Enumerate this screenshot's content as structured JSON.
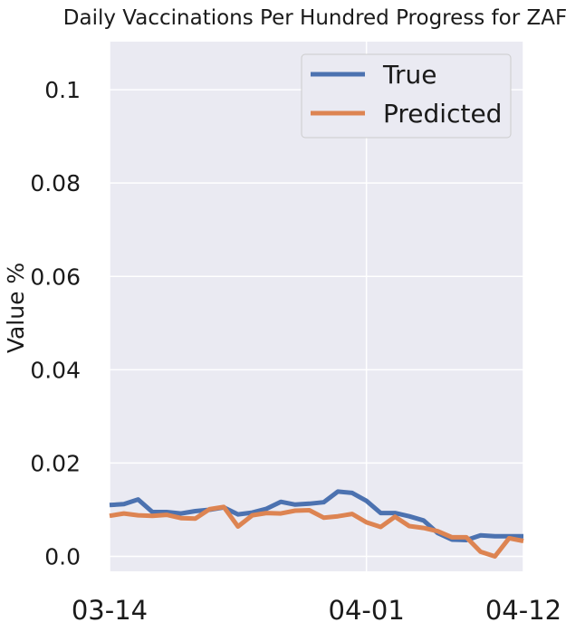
{
  "chart_data": {
    "type": "line",
    "title": "Daily Vaccinations Per Hundred Progress for ZAF",
    "xlabel": "",
    "ylabel": "Value %",
    "x_tick_labels": [
      "03-14",
      "04-01",
      "04-12"
    ],
    "x_tick_positions": [
      0,
      18,
      29
    ],
    "y_tick_labels": [
      "0.0",
      "0.02",
      "0.04",
      "0.06",
      "0.08",
      "0.1"
    ],
    "y_tick_values": [
      0.0,
      0.02,
      0.04,
      0.06,
      0.08,
      0.1
    ],
    "ylim": [
      -0.0032,
      0.1103
    ],
    "xlim": [
      0,
      29
    ],
    "grid": true,
    "legend_position": "top-right",
    "series": [
      {
        "name": "True",
        "color": "#4c72b0",
        "values": [
          0.011,
          0.0112,
          0.0122,
          0.0095,
          0.0095,
          0.0092,
          0.0097,
          0.01,
          0.0105,
          0.009,
          0.0094,
          0.0102,
          0.0117,
          0.0111,
          0.0113,
          0.0116,
          0.0139,
          0.0136,
          0.0119,
          0.0093,
          0.0093,
          0.0086,
          0.0077,
          0.005,
          0.0036,
          0.0035,
          0.0045,
          0.0043,
          0.0043,
          0.0043
        ]
      },
      {
        "name": "Predicted",
        "color": "#dd8452",
        "values": [
          0.0087,
          0.0092,
          0.0088,
          0.0087,
          0.0089,
          0.0082,
          0.0081,
          0.0101,
          0.0106,
          0.0064,
          0.0088,
          0.0093,
          0.0092,
          0.0098,
          0.0099,
          0.0083,
          0.0086,
          0.0091,
          0.0073,
          0.0063,
          0.0085,
          0.0065,
          0.0061,
          0.0054,
          0.0041,
          0.0041,
          0.001,
          0.0,
          0.0039,
          0.0033
        ]
      }
    ]
  }
}
